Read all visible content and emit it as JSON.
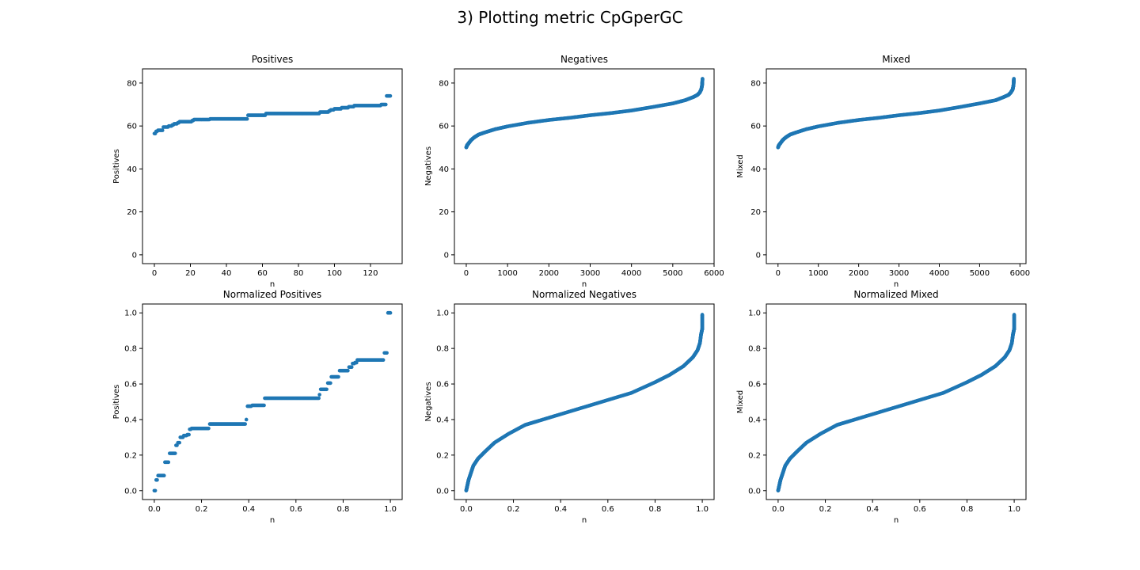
{
  "figure": {
    "title": "3) Plotting metric CpGperGC",
    "marker_color": "#1f77b4"
  },
  "chart_data": [
    {
      "type": "scatter",
      "title": "Positives",
      "xlabel": "n",
      "ylabel": "Positives",
      "xlim": [
        -6.6,
        137.6
      ],
      "ylim": [
        -4.1,
        86.6
      ],
      "xticks": [
        0,
        20,
        40,
        60,
        80,
        100,
        120
      ],
      "yticks": [
        0,
        20,
        40,
        60,
        80
      ],
      "series": [
        {
          "shape": "steps",
          "points": [
            [
              0,
              56.5
            ],
            [
              1,
              57.5
            ],
            [
              2,
              58
            ],
            [
              4,
              58
            ],
            [
              5,
              59.5
            ],
            [
              7,
              59.5
            ],
            [
              8,
              60
            ],
            [
              10,
              60.5
            ],
            [
              11,
              61
            ],
            [
              13,
              61.5
            ],
            [
              14,
              62
            ],
            [
              20,
              62
            ],
            [
              21,
              62.5
            ],
            [
              22,
              63
            ],
            [
              30,
              63
            ],
            [
              31,
              63.3
            ],
            [
              51,
              63.3
            ],
            [
              52,
              65
            ],
            [
              61,
              65
            ],
            [
              62,
              65.8
            ],
            [
              91,
              65.8
            ],
            [
              92,
              66.5
            ],
            [
              97,
              67
            ],
            [
              98,
              67.5
            ],
            [
              100,
              68
            ],
            [
              104,
              68.5
            ],
            [
              108,
              69
            ],
            [
              111,
              69.5
            ],
            [
              125,
              69.5
            ],
            [
              126,
              70
            ],
            [
              128,
              70
            ],
            [
              129,
              74
            ],
            [
              131,
              74
            ]
          ]
        }
      ]
    },
    {
      "type": "scatter",
      "title": "Negatives",
      "xlabel": "n",
      "ylabel": "Negatives",
      "xlim": [
        -287,
        6000
      ],
      "ylim": [
        -4.1,
        86.6
      ],
      "xticks": [
        0,
        1000,
        2000,
        3000,
        4000,
        5000,
        6000
      ],
      "yticks": [
        0,
        20,
        40,
        60,
        80
      ],
      "series": [
        {
          "shape": "curve",
          "points": [
            [
              0,
              50
            ],
            [
              20,
              51
            ],
            [
              60,
              52
            ],
            [
              120,
              53.5
            ],
            [
              200,
              54.8
            ],
            [
              300,
              56
            ],
            [
              450,
              57
            ],
            [
              700,
              58.5
            ],
            [
              1000,
              59.8
            ],
            [
              1500,
              61.5
            ],
            [
              2000,
              62.8
            ],
            [
              2500,
              63.8
            ],
            [
              3000,
              65
            ],
            [
              3500,
              66
            ],
            [
              4000,
              67.2
            ],
            [
              4500,
              68.8
            ],
            [
              5000,
              70.5
            ],
            [
              5300,
              72
            ],
            [
              5500,
              73.5
            ],
            [
              5600,
              74.5
            ],
            [
              5650,
              75.5
            ],
            [
              5690,
              77
            ],
            [
              5710,
              79
            ],
            [
              5720,
              82
            ]
          ]
        }
      ]
    },
    {
      "type": "scatter",
      "title": "Mixed",
      "xlabel": "n",
      "ylabel": "Mixed",
      "xlim": [
        -290,
        6150
      ],
      "ylim": [
        -4.1,
        86.6
      ],
      "xticks": [
        0,
        1000,
        2000,
        3000,
        4000,
        5000,
        6000
      ],
      "yticks": [
        0,
        20,
        40,
        60,
        80
      ],
      "series": [
        {
          "shape": "curve",
          "points": [
            [
              0,
              50
            ],
            [
              20,
              51
            ],
            [
              60,
              52
            ],
            [
              120,
              53.5
            ],
            [
              200,
              54.8
            ],
            [
              300,
              56
            ],
            [
              450,
              57
            ],
            [
              700,
              58.5
            ],
            [
              1000,
              59.8
            ],
            [
              1500,
              61.5
            ],
            [
              2000,
              62.8
            ],
            [
              2500,
              63.8
            ],
            [
              3000,
              65
            ],
            [
              3500,
              66
            ],
            [
              4000,
              67.2
            ],
            [
              4500,
              68.8
            ],
            [
              5000,
              70.5
            ],
            [
              5400,
              72
            ],
            [
              5600,
              73.5
            ],
            [
              5720,
              74.5
            ],
            [
              5770,
              75.5
            ],
            [
              5820,
              77
            ],
            [
              5840,
              79
            ],
            [
              5850,
              82
            ]
          ]
        }
      ]
    },
    {
      "type": "scatter",
      "title": "Normalized Positives",
      "xlabel": "n",
      "ylabel": "Positives",
      "xlim": [
        -0.05,
        1.05
      ],
      "ylim": [
        -0.05,
        1.05
      ],
      "xticks": [
        0.0,
        0.2,
        0.4,
        0.6,
        0.8,
        1.0
      ],
      "yticks": [
        0.0,
        0.2,
        0.4,
        0.6,
        0.8,
        1.0
      ],
      "series": [
        {
          "shape": "steps",
          "points": [
            [
              0.0,
              0.0
            ],
            [
              0.008,
              0.06
            ],
            [
              0.016,
              0.085
            ],
            [
              0.038,
              0.085
            ],
            [
              0.045,
              0.16
            ],
            [
              0.06,
              0.16
            ],
            [
              0.065,
              0.21
            ],
            [
              0.085,
              0.21
            ],
            [
              0.092,
              0.255
            ],
            [
              0.1,
              0.27
            ],
            [
              0.11,
              0.3
            ],
            [
              0.125,
              0.31
            ],
            [
              0.14,
              0.315
            ],
            [
              0.15,
              0.345
            ],
            [
              0.158,
              0.35
            ],
            [
              0.23,
              0.35
            ],
            [
              0.235,
              0.375
            ],
            [
              0.385,
              0.375
            ],
            [
              0.39,
              0.4
            ],
            [
              0.395,
              0.475
            ],
            [
              0.41,
              0.475
            ],
            [
              0.415,
              0.48
            ],
            [
              0.462,
              0.48
            ],
            [
              0.468,
              0.52
            ],
            [
              0.69,
              0.52
            ],
            [
              0.7,
              0.54
            ],
            [
              0.705,
              0.57
            ],
            [
              0.73,
              0.57
            ],
            [
              0.735,
              0.605
            ],
            [
              0.75,
              0.64
            ],
            [
              0.78,
              0.64
            ],
            [
              0.785,
              0.675
            ],
            [
              0.82,
              0.675
            ],
            [
              0.825,
              0.695
            ],
            [
              0.84,
              0.715
            ],
            [
              0.85,
              0.72
            ],
            [
              0.86,
              0.735
            ],
            [
              0.97,
              0.735
            ],
            [
              0.975,
              0.775
            ],
            [
              0.985,
              0.775
            ],
            [
              0.99,
              1.0
            ],
            [
              1.0,
              1.0
            ]
          ]
        }
      ]
    },
    {
      "type": "scatter",
      "title": "Normalized Negatives",
      "xlabel": "n",
      "ylabel": "Negatives",
      "xlim": [
        -0.05,
        1.05
      ],
      "ylim": [
        -0.05,
        1.05
      ],
      "xticks": [
        0.0,
        0.2,
        0.4,
        0.6,
        0.8,
        1.0
      ],
      "yticks": [
        0.0,
        0.2,
        0.4,
        0.6,
        0.8,
        1.0
      ],
      "series": [
        {
          "shape": "curve",
          "points": [
            [
              0.0,
              0.0
            ],
            [
              0.005,
              0.03
            ],
            [
              0.01,
              0.06
            ],
            [
              0.02,
              0.1
            ],
            [
              0.03,
              0.14
            ],
            [
              0.05,
              0.18
            ],
            [
              0.08,
              0.22
            ],
            [
              0.12,
              0.27
            ],
            [
              0.18,
              0.32
            ],
            [
              0.25,
              0.37
            ],
            [
              0.3,
              0.39
            ],
            [
              0.4,
              0.43
            ],
            [
              0.5,
              0.47
            ],
            [
              0.6,
              0.51
            ],
            [
              0.7,
              0.55
            ],
            [
              0.8,
              0.61
            ],
            [
              0.86,
              0.65
            ],
            [
              0.92,
              0.7
            ],
            [
              0.96,
              0.75
            ],
            [
              0.98,
              0.79
            ],
            [
              0.99,
              0.83
            ],
            [
              0.995,
              0.88
            ],
            [
              1.0,
              0.91
            ],
            [
              1.0,
              0.99
            ]
          ]
        }
      ]
    },
    {
      "type": "scatter",
      "title": "Normalized Mixed",
      "xlabel": "n",
      "ylabel": "Mixed",
      "xlim": [
        -0.05,
        1.05
      ],
      "ylim": [
        -0.05,
        1.05
      ],
      "xticks": [
        0.0,
        0.2,
        0.4,
        0.6,
        0.8,
        1.0
      ],
      "yticks": [
        0.0,
        0.2,
        0.4,
        0.6,
        0.8,
        1.0
      ],
      "series": [
        {
          "shape": "curve",
          "points": [
            [
              0.0,
              0.0
            ],
            [
              0.005,
              0.03
            ],
            [
              0.01,
              0.06
            ],
            [
              0.02,
              0.1
            ],
            [
              0.03,
              0.14
            ],
            [
              0.05,
              0.18
            ],
            [
              0.08,
              0.22
            ],
            [
              0.12,
              0.27
            ],
            [
              0.18,
              0.32
            ],
            [
              0.25,
              0.37
            ],
            [
              0.3,
              0.39
            ],
            [
              0.4,
              0.43
            ],
            [
              0.5,
              0.47
            ],
            [
              0.6,
              0.51
            ],
            [
              0.7,
              0.55
            ],
            [
              0.8,
              0.61
            ],
            [
              0.86,
              0.65
            ],
            [
              0.92,
              0.7
            ],
            [
              0.96,
              0.75
            ],
            [
              0.98,
              0.79
            ],
            [
              0.99,
              0.83
            ],
            [
              0.995,
              0.88
            ],
            [
              1.0,
              0.91
            ],
            [
              1.0,
              0.99
            ]
          ]
        }
      ]
    }
  ]
}
